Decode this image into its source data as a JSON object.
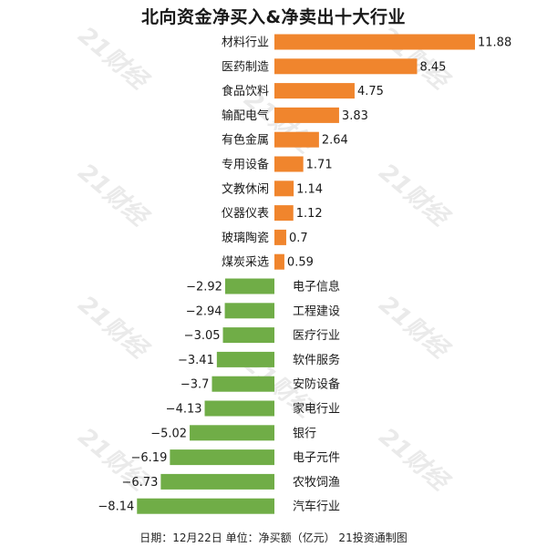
{
  "header": {
    "title": "北向资金净买入&净卖出十大行业"
  },
  "footer": {
    "note": "日期：12月22日 单位：净买额（亿元） 21投资通制图"
  },
  "watermark": {
    "text": "21财经"
  },
  "colors": {
    "positive": "#f0852d",
    "negative": "#70ad47",
    "label_text": "#1a1a1a",
    "watermark": "#d9d9d9"
  },
  "chart_data": {
    "type": "bar",
    "orientation": "horizontal",
    "title": "北向资金净买入&净卖出十大行业",
    "xlabel": "",
    "ylabel": "",
    "grid": false,
    "legend": "none",
    "xlim": [
      -8.14,
      11.88
    ],
    "categories": [
      "材料行业",
      "医药制造",
      "食品饮料",
      "输配电气",
      "有色金属",
      "专用设备",
      "文教休闲",
      "仪器仪表",
      "玻璃陶瓷",
      "煤炭采选",
      "电子信息",
      "工程建设",
      "医疗行业",
      "软件服务",
      "安防设备",
      "家电行业",
      "银行",
      "电子元件",
      "农牧饲渔",
      "汽车行业"
    ],
    "values": [
      11.88,
      8.45,
      4.75,
      3.83,
      2.64,
      1.71,
      1.14,
      1.12,
      0.7,
      0.59,
      -2.92,
      -2.94,
      -3.05,
      -3.41,
      -3.7,
      -4.13,
      -5.02,
      -6.19,
      -6.73,
      -8.14
    ],
    "value_labels": [
      "11.88",
      "8.45",
      "4.75",
      "3.83",
      "2.64",
      "1.71",
      "1.14",
      "1.12",
      "0.7",
      "0.59",
      "−2.92",
      "−2.94",
      "−3.05",
      "−3.41",
      "−3.7",
      "−4.13",
      "−5.02",
      "−6.19",
      "−6.73",
      "−8.14"
    ]
  }
}
